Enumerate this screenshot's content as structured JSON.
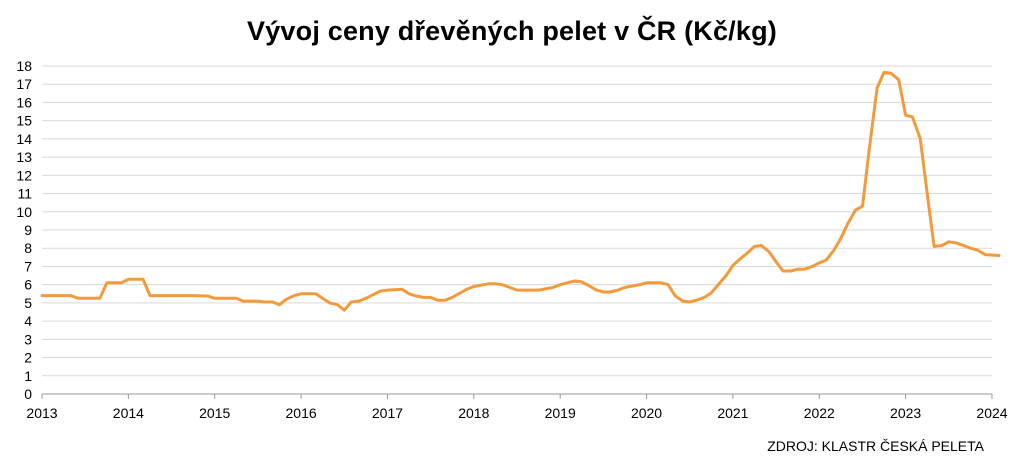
{
  "title": "Vývoj ceny dřevěných pelet v ČR (Kč/kg)",
  "source": "ZDROJ: KLASTR ČESKÁ PELETA",
  "colors": {
    "line": "#F39A3C",
    "grid": "#D9D9D9",
    "axis": "#999999"
  },
  "chart_data": {
    "type": "line",
    "title": "Vývoj ceny dřevěných pelet v ČR (Kč/kg)",
    "xlabel": "",
    "ylabel": "",
    "xlim": [
      2013,
      2024
    ],
    "ylim": [
      0,
      18
    ],
    "y_ticks": [
      0,
      1,
      2,
      3,
      4,
      5,
      6,
      7,
      8,
      9,
      10,
      11,
      12,
      13,
      14,
      15,
      16,
      17,
      18
    ],
    "x_ticks": [
      "2013",
      "2014",
      "2015",
      "2016",
      "2017",
      "2018",
      "2019",
      "2020",
      "2021",
      "2022",
      "2023",
      "2024"
    ],
    "grid": true,
    "legend": "none",
    "series": [
      {
        "x": [
          2013.0,
          2013.33,
          2013.42,
          2013.5,
          2013.67,
          2013.75,
          2013.92,
          2014.0,
          2014.17,
          2014.25,
          2014.5,
          2014.75,
          2014.92,
          2015.0,
          2015.25,
          2015.33,
          2015.5,
          2015.58,
          2015.67,
          2015.75,
          2015.83,
          2015.92,
          2016.0,
          2016.17,
          2016.33,
          2016.42,
          2016.5,
          2016.58,
          2016.67,
          2016.75,
          2016.92,
          2017.0,
          2017.17,
          2017.25,
          2017.33,
          2017.42,
          2017.5,
          2017.58,
          2017.67,
          2017.75,
          2017.92,
          2018.0,
          2018.17,
          2018.25,
          2018.33,
          2018.5,
          2018.58,
          2018.67,
          2018.75,
          2018.92,
          2019.0,
          2019.08,
          2019.17,
          2019.25,
          2019.33,
          2019.42,
          2019.5,
          2019.58,
          2019.67,
          2019.75,
          2019.92,
          2020.0,
          2020.17,
          2020.25,
          2020.33,
          2020.42,
          2020.5,
          2020.58,
          2020.67,
          2020.75,
          2020.92,
          2021.0,
          2021.08,
          2021.17,
          2021.25,
          2021.33,
          2021.42,
          2021.5,
          2021.58,
          2021.67,
          2021.75,
          2021.83,
          2021.92,
          2022.0,
          2022.08,
          2022.17,
          2022.25,
          2022.33,
          2022.42,
          2022.5,
          2022.58,
          2022.67,
          2022.75,
          2022.83,
          2022.92,
          2023.0,
          2023.08,
          2023.17,
          2023.25,
          2023.33,
          2023.42,
          2023.5,
          2023.58,
          2023.67,
          2023.75,
          2023.83,
          2023.92,
          2024.08
        ],
        "y": [
          5.4,
          5.4,
          5.25,
          5.25,
          5.25,
          6.1,
          6.1,
          6.3,
          6.3,
          5.4,
          5.4,
          5.4,
          5.38,
          5.25,
          5.25,
          5.1,
          5.1,
          5.05,
          5.05,
          4.9,
          5.2,
          5.4,
          5.5,
          5.5,
          5.0,
          4.9,
          4.6,
          5.05,
          5.1,
          5.25,
          5.65,
          5.7,
          5.75,
          5.5,
          5.38,
          5.3,
          5.3,
          5.15,
          5.15,
          5.3,
          5.75,
          5.9,
          6.05,
          6.05,
          6.0,
          5.7,
          5.7,
          5.7,
          5.7,
          5.85,
          6.0,
          6.1,
          6.2,
          6.15,
          5.95,
          5.7,
          5.6,
          5.6,
          5.7,
          5.85,
          6.0,
          6.1,
          6.1,
          6.0,
          5.4,
          5.1,
          5.05,
          5.15,
          5.3,
          5.55,
          6.5,
          7.05,
          7.4,
          7.75,
          8.1,
          8.15,
          7.8,
          7.25,
          6.75,
          6.75,
          6.85,
          6.85,
          7.0,
          7.2,
          7.35,
          7.9,
          8.55,
          9.35,
          10.1,
          10.3,
          13.5,
          16.8,
          17.65,
          17.6,
          17.25,
          15.3,
          15.2,
          14.0,
          11.0,
          8.1,
          8.15,
          8.35,
          8.3,
          8.15,
          8.0,
          7.9,
          7.65,
          7.6
        ]
      }
    ]
  }
}
